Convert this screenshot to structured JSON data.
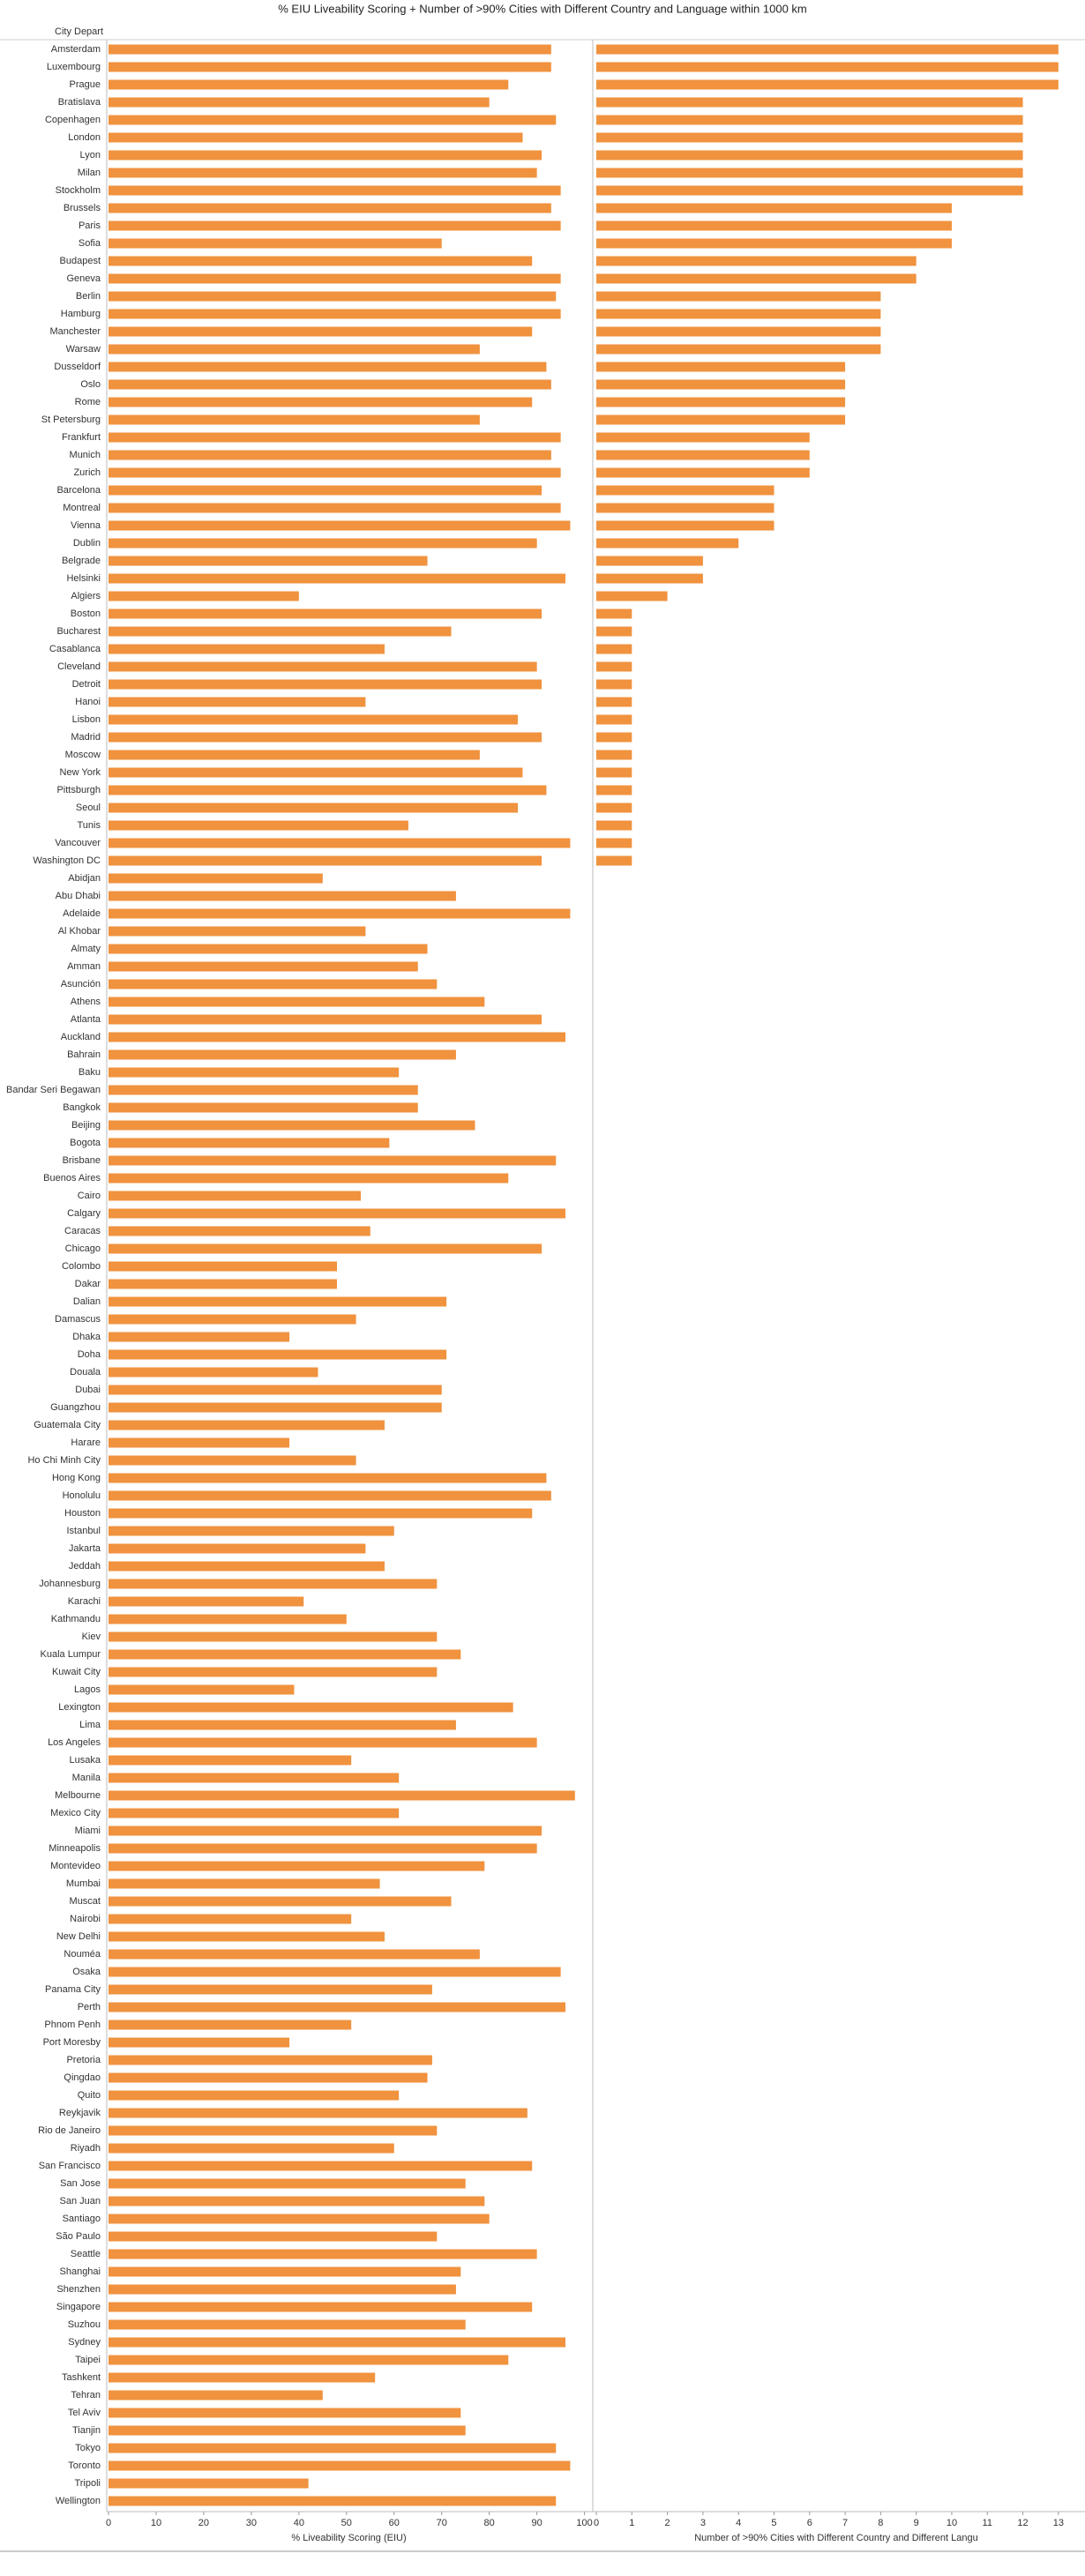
{
  "chart_data": {
    "type": "bar",
    "orientation": "horizontal",
    "title": "% EIU Liveability Scoring + Number of >90% Cities with Different Country and Language within 1000 km",
    "y_label": "City Depart",
    "color": "#f0923e",
    "categories": [
      "Amsterdam",
      "Luxembourg",
      "Prague",
      "Bratislava",
      "Copenhagen",
      "London",
      "Lyon",
      "Milan",
      "Stockholm",
      "Brussels",
      "Paris",
      "Sofia",
      "Budapest",
      "Geneva",
      "Berlin",
      "Hamburg",
      "Manchester",
      "Warsaw",
      "Dusseldorf",
      "Oslo",
      "Rome",
      "St Petersburg",
      "Frankfurt",
      "Munich",
      "Zurich",
      "Barcelona",
      "Montreal",
      "Vienna",
      "Dublin",
      "Belgrade",
      "Helsinki",
      "Algiers",
      "Boston",
      "Bucharest",
      "Casablanca",
      "Cleveland",
      "Detroit",
      "Hanoi",
      "Lisbon",
      "Madrid",
      "Moscow",
      "New York",
      "Pittsburgh",
      "Seoul",
      "Tunis",
      "Vancouver",
      "Washington DC",
      "Abidjan",
      "Abu Dhabi",
      "Adelaide",
      "Al Khobar",
      "Almaty",
      "Amman",
      "Asunción",
      "Athens",
      "Atlanta",
      "Auckland",
      "Bahrain",
      "Baku",
      "Bandar Seri Begawan",
      "Bangkok",
      "Beijing",
      "Bogota",
      "Brisbane",
      "Buenos Aires",
      "Cairo",
      "Calgary",
      "Caracas",
      "Chicago",
      "Colombo",
      "Dakar",
      "Dalian",
      "Damascus",
      "Dhaka",
      "Doha",
      "Douala",
      "Dubai",
      "Guangzhou",
      "Guatemala City",
      "Harare",
      "Ho Chi Minh City",
      "Hong Kong",
      "Honolulu",
      "Houston",
      "Istanbul",
      "Jakarta",
      "Jeddah",
      "Johannesburg",
      "Karachi",
      "Kathmandu",
      "Kiev",
      "Kuala Lumpur",
      "Kuwait City",
      "Lagos",
      "Lexington",
      "Lima",
      "Los Angeles",
      "Lusaka",
      "Manila",
      "Melbourne",
      "Mexico City",
      "Miami",
      "Minneapolis",
      "Montevideo",
      "Mumbai",
      "Muscat",
      "Nairobi",
      "New Delhi",
      "Nouméa",
      "Osaka",
      "Panama City",
      "Perth",
      "Phnom Penh",
      "Port Moresby",
      "Pretoria",
      "Qingdao",
      "Quito",
      "Reykjavik",
      "Rio de Janeiro",
      "Riyadh",
      "San Francisco",
      "San Jose",
      "San Juan",
      "Santiago",
      "São Paulo",
      "Seattle",
      "Shanghai",
      "Shenzhen",
      "Singapore",
      "Suzhou",
      "Sydney",
      "Taipei",
      "Tashkent",
      "Tehran",
      "Tel Aviv",
      "Tianjin",
      "Tokyo",
      "Toronto",
      "Tripoli",
      "Wellington"
    ],
    "panels": [
      {
        "x_label": "% Liveability Scoring (EIU)",
        "xlim": [
          0,
          101
        ],
        "xticks": [
          0,
          10,
          20,
          30,
          40,
          50,
          60,
          70,
          80,
          90,
          100
        ],
        "values": [
          93,
          93,
          84,
          80,
          94,
          87,
          91,
          90,
          95,
          93,
          95,
          70,
          89,
          95,
          94,
          95,
          89,
          78,
          92,
          93,
          89,
          78,
          95,
          93,
          95,
          91,
          95,
          97,
          90,
          67,
          96,
          40,
          91,
          72,
          58,
          90,
          91,
          54,
          86,
          91,
          78,
          87,
          92,
          86,
          63,
          97,
          91,
          45,
          73,
          97,
          54,
          67,
          65,
          69,
          79,
          91,
          96,
          73,
          61,
          65,
          65,
          77,
          59,
          94,
          84,
          53,
          96,
          55,
          91,
          48,
          48,
          71,
          52,
          38,
          71,
          44,
          70,
          70,
          58,
          38,
          52,
          92,
          93,
          89,
          60,
          54,
          58,
          69,
          41,
          50,
          69,
          74,
          69,
          39,
          85,
          73,
          90,
          51,
          61,
          98,
          61,
          91,
          90,
          79,
          57,
          72,
          51,
          58,
          78,
          95,
          68,
          96,
          51,
          38,
          68,
          67,
          61,
          88,
          69,
          60,
          89,
          75,
          79,
          80,
          69,
          90,
          74,
          73,
          89,
          75,
          96,
          84,
          56,
          45,
          74,
          75,
          94,
          97,
          42,
          94
        ]
      },
      {
        "x_label": "Number of >90% Cities with Different Country and Different Langu",
        "xlim": [
          0,
          13.5
        ],
        "xticks": [
          0,
          1,
          2,
          3,
          4,
          5,
          6,
          7,
          8,
          9,
          10,
          11,
          12,
          13
        ],
        "values": [
          13,
          13,
          13,
          12,
          12,
          12,
          12,
          12,
          12,
          10,
          10,
          10,
          9,
          9,
          8,
          8,
          8,
          8,
          7,
          7,
          7,
          7,
          6,
          6,
          6,
          5,
          5,
          5,
          4,
          3,
          3,
          2,
          1,
          1,
          1,
          1,
          1,
          1,
          1,
          1,
          1,
          1,
          1,
          1,
          1,
          1,
          1,
          null,
          null,
          null,
          null,
          null,
          null,
          null,
          null,
          null,
          null,
          null,
          null,
          null,
          null,
          null,
          null,
          null,
          null,
          null,
          null,
          null,
          null,
          null,
          null,
          null,
          null,
          null,
          null,
          null,
          null,
          null,
          null,
          null,
          null,
          null,
          null,
          null,
          null,
          null,
          null,
          null,
          null,
          null,
          null,
          null,
          null,
          null,
          null,
          null,
          null,
          null,
          null,
          null,
          null,
          null,
          null,
          null,
          null,
          null,
          null,
          null,
          null,
          null,
          null,
          null,
          null,
          null,
          null,
          null,
          null,
          null,
          null,
          null,
          null,
          null,
          null,
          null,
          null,
          null,
          null,
          null,
          null,
          null,
          null,
          null,
          null,
          null,
          null,
          null,
          null,
          null,
          null,
          null
        ]
      }
    ]
  }
}
